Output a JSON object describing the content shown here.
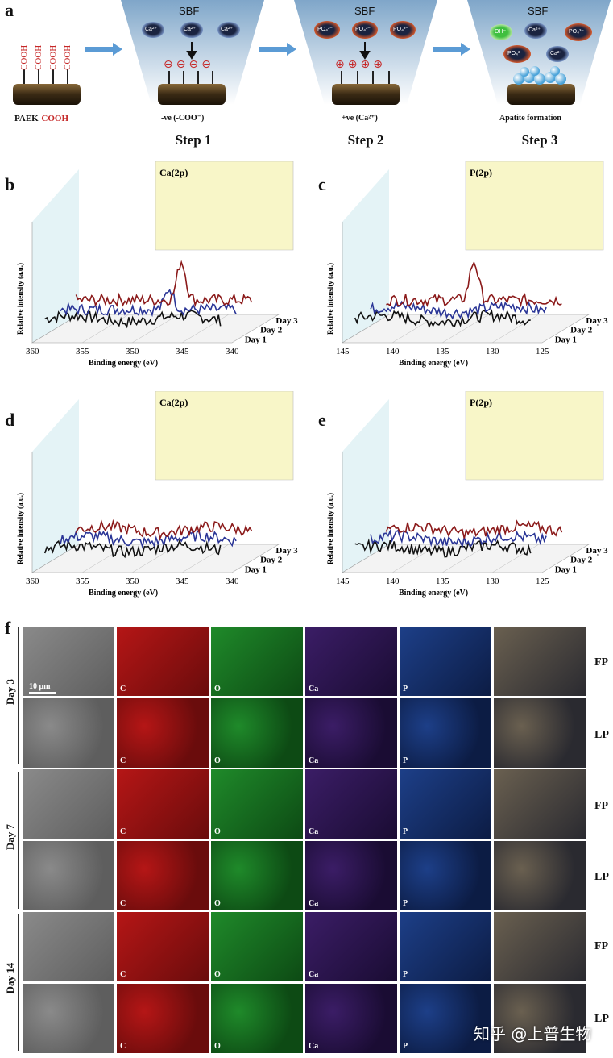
{
  "panels": {
    "a": "a",
    "b": "b",
    "c": "c",
    "d": "d",
    "e": "e",
    "f": "f"
  },
  "panel_a": {
    "sbf": "SBF",
    "cooh": "COOH",
    "cooh_red": "COOH",
    "paek": "PAEK-",
    "paek_cooh": "COOH",
    "step1_caption": "-ve (-COO⁻)",
    "step2_caption": "+ve (Ca²⁺)",
    "step3_caption": "Apatite formation",
    "step1": "Step 1",
    "step2": "Step 2",
    "step3": "Step 3",
    "ion_ca": "Ca²⁺",
    "ion_po4": "PO₄³⁻",
    "ion_oh": "OH⁻",
    "minus": "⊖",
    "plus": "⊕"
  },
  "chart_data": [
    {
      "id": "b",
      "type": "line",
      "title": "Ca(2p)",
      "xlabel": "Binding energy (eV)",
      "ylabel": "Relative intensity (a.u.)",
      "x_ticks": [
        "360",
        "355",
        "350",
        "345",
        "340"
      ],
      "series": [
        {
          "name": "Day 1",
          "peak": false
        },
        {
          "name": "Day 2",
          "peak": true
        },
        {
          "name": "Day 3",
          "peak": true
        }
      ]
    },
    {
      "id": "c",
      "type": "line",
      "title": "P(2p)",
      "xlabel": "Binding energy (eV)",
      "ylabel": "Relative intensity (a.u.)",
      "x_ticks": [
        "145",
        "140",
        "135",
        "130",
        "125"
      ],
      "series": [
        {
          "name": "Day 1",
          "peak": false
        },
        {
          "name": "Day 2",
          "peak": false
        },
        {
          "name": "Day 3",
          "peak": true
        }
      ]
    },
    {
      "id": "d",
      "type": "line",
      "title": "Ca(2p)",
      "xlabel": "Binding energy (eV)",
      "ylabel": "Relative intensity (a.u.)",
      "x_ticks": [
        "360",
        "355",
        "350",
        "345",
        "340"
      ],
      "series": [
        {
          "name": "Day 1",
          "peak": false
        },
        {
          "name": "Day 2",
          "peak": false
        },
        {
          "name": "Day 3",
          "peak": false
        }
      ]
    },
    {
      "id": "e",
      "type": "line",
      "title": "P(2p)",
      "xlabel": "Binding energy (eV)",
      "ylabel": "Relative intensity (a.u.)",
      "x_ticks": [
        "145",
        "140",
        "135",
        "130",
        "125"
      ],
      "series": [
        {
          "name": "Day 1",
          "peak": false
        },
        {
          "name": "Day 2",
          "peak": false
        },
        {
          "name": "Day 3",
          "peak": false
        }
      ]
    }
  ],
  "panel_f": {
    "scale_bar": "10 μm",
    "days": [
      "Day 3",
      "Day 7",
      "Day 14"
    ],
    "row_labels": [
      "FP",
      "LP",
      "FP",
      "LP",
      "FP",
      "LP"
    ],
    "elements": [
      "C",
      "O",
      "Ca",
      "P"
    ]
  },
  "colors": {
    "day1": "#111111",
    "day2": "#2a3596",
    "day3": "#8b1a1a",
    "wall": "#d9eef2",
    "back": "#f8f6c8",
    "red": "#c62828"
  },
  "watermark": "知乎 @上普生物"
}
